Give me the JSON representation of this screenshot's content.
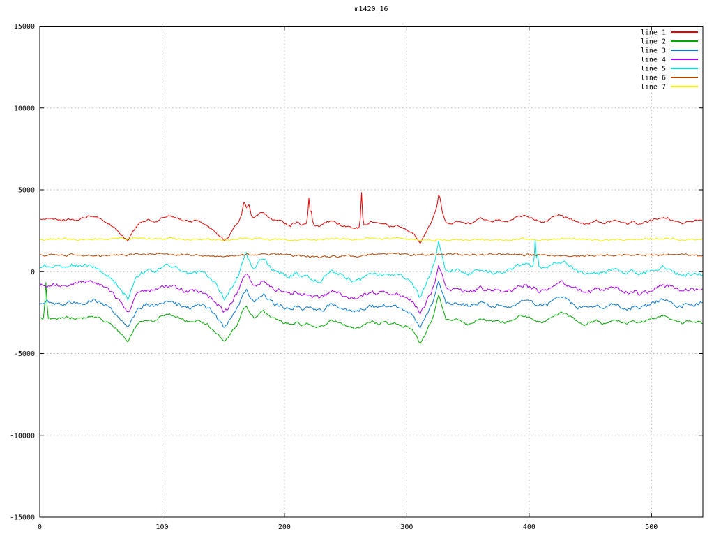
{
  "page": {
    "background": "#ffffff"
  },
  "chart_data": {
    "type": "line",
    "title": "m1420_16",
    "xlabel": "",
    "ylabel": "",
    "xlim": [
      0,
      542
    ],
    "ylim": [
      -15000,
      15000
    ],
    "xticks": [
      0,
      100,
      200,
      300,
      400,
      500
    ],
    "yticks": [
      -15000,
      -10000,
      -5000,
      0,
      5000,
      10000,
      15000
    ],
    "grid": true,
    "grid_style": "dotted",
    "grid_color": "#b0b0b0",
    "axis_color": "#000000",
    "legend_position": "top-right-inside",
    "common_shape_note": "shared macro waveform as [x, deviation] anchors; each series = mean + scale*shape + spikes + jitter",
    "shape": [
      [
        0,
        0
      ],
      [
        8,
        60
      ],
      [
        16,
        -40
      ],
      [
        24,
        40
      ],
      [
        32,
        0
      ],
      [
        40,
        160
      ],
      [
        46,
        120
      ],
      [
        52,
        -60
      ],
      [
        58,
        -350
      ],
      [
        63,
        -700
      ],
      [
        68,
        -1150
      ],
      [
        72,
        -1500
      ],
      [
        75,
        -1000
      ],
      [
        79,
        -450
      ],
      [
        83,
        -200
      ],
      [
        88,
        -60
      ],
      [
        93,
        -140
      ],
      [
        98,
        60
      ],
      [
        104,
        230
      ],
      [
        110,
        170
      ],
      [
        116,
        -30
      ],
      [
        122,
        -140
      ],
      [
        128,
        -60
      ],
      [
        134,
        -260
      ],
      [
        140,
        -560
      ],
      [
        146,
        -1000
      ],
      [
        151,
        -1450
      ],
      [
        154,
        -1250
      ],
      [
        158,
        -700
      ],
      [
        162,
        -250
      ],
      [
        166,
        500
      ],
      [
        169,
        800
      ],
      [
        172,
        350
      ],
      [
        175,
        80
      ],
      [
        179,
        300
      ],
      [
        183,
        500
      ],
      [
        186,
        250
      ],
      [
        190,
        0
      ],
      [
        195,
        -120
      ],
      [
        200,
        -260
      ],
      [
        205,
        -380
      ],
      [
        210,
        -220
      ],
      [
        214,
        -420
      ],
      [
        218,
        -260
      ],
      [
        223,
        -400
      ],
      [
        228,
        -540
      ],
      [
        233,
        -380
      ],
      [
        238,
        -160
      ],
      [
        243,
        -260
      ],
      [
        248,
        -420
      ],
      [
        253,
        -560
      ],
      [
        258,
        -620
      ],
      [
        263,
        -500
      ],
      [
        268,
        -300
      ],
      [
        272,
        -150
      ],
      [
        276,
        -280
      ],
      [
        281,
        -180
      ],
      [
        286,
        -380
      ],
      [
        291,
        -300
      ],
      [
        296,
        -480
      ],
      [
        301,
        -640
      ],
      [
        305,
        -860
      ],
      [
        308,
        -1150
      ],
      [
        311,
        -1550
      ],
      [
        314,
        -1150
      ],
      [
        317,
        -650
      ],
      [
        320,
        -250
      ],
      [
        323,
        400
      ],
      [
        326,
        1400
      ],
      [
        329,
        600
      ],
      [
        332,
        -80
      ],
      [
        336,
        -180
      ],
      [
        340,
        -60
      ],
      [
        345,
        -160
      ],
      [
        350,
        -280
      ],
      [
        355,
        -140
      ],
      [
        360,
        60
      ],
      [
        365,
        -60
      ],
      [
        370,
        -200
      ],
      [
        375,
        -80
      ],
      [
        380,
        -220
      ],
      [
        385,
        -100
      ],
      [
        390,
        100
      ],
      [
        395,
        240
      ],
      [
        400,
        140
      ],
      [
        405,
        -20
      ],
      [
        410,
        -160
      ],
      [
        415,
        -40
      ],
      [
        420,
        180
      ],
      [
        425,
        340
      ],
      [
        430,
        220
      ],
      [
        435,
        20
      ],
      [
        440,
        -180
      ],
      [
        445,
        -340
      ],
      [
        450,
        -220
      ],
      [
        455,
        -100
      ],
      [
        460,
        -240
      ],
      [
        465,
        -120
      ],
      [
        470,
        20
      ],
      [
        475,
        -120
      ],
      [
        480,
        -260
      ],
      [
        485,
        -140
      ],
      [
        490,
        -320
      ],
      [
        495,
        -200
      ],
      [
        500,
        -80
      ],
      [
        505,
        40
      ],
      [
        510,
        140
      ],
      [
        515,
        20
      ],
      [
        520,
        -140
      ],
      [
        525,
        -260
      ],
      [
        530,
        -120
      ],
      [
        535,
        -180
      ],
      [
        540,
        -100
      ],
      [
        542,
        -140
      ]
    ],
    "series": [
      {
        "name": "line 1",
        "color": "#e60000",
        "mean": 3200,
        "scale": 0.9,
        "noise": 55,
        "seed": 1,
        "spikes": [
          [
            167,
            500,
            2
          ],
          [
            171,
            420,
            2
          ],
          [
            220,
            1550,
            1.6
          ],
          [
            222,
            800,
            1.4
          ],
          [
            263,
            2100,
            1.4
          ],
          [
            327,
            400,
            2
          ]
        ]
      },
      {
        "name": "line 2",
        "color": "#00a800",
        "mean": -2900,
        "scale": 1.0,
        "noise": 60,
        "seed": 2,
        "spikes": [
          [
            5,
            2250,
            1.6
          ]
        ]
      },
      {
        "name": "line 3",
        "color": "#0a78d2",
        "mean": -1900,
        "scale": 1.0,
        "noise": 95,
        "seed": 3,
        "spikes": []
      },
      {
        "name": "line 4",
        "color": "#aa00ee",
        "mean": -1050,
        "scale": 1.0,
        "noise": 95,
        "seed": 4,
        "spikes": [
          [
            15,
            300,
            40
          ]
        ]
      },
      {
        "name": "line 5",
        "color": "#00e0e0",
        "mean": 150,
        "scale": 1.2,
        "noise": 95,
        "seed": 5,
        "spikes": [
          [
            15,
            350,
            40
          ],
          [
            168,
            420,
            2
          ],
          [
            405,
            1650,
            1.4
          ],
          [
            407,
            900,
            1.2
          ]
        ]
      },
      {
        "name": "line 6",
        "color": "#b44400",
        "mean": 1000,
        "scale": 0.04,
        "noise": 50,
        "seed": 6,
        "spikes": []
      },
      {
        "name": "line 7",
        "color": "#f0f000",
        "mean": 2000,
        "scale": 0.03,
        "noise": 45,
        "seed": 7,
        "spikes": []
      }
    ]
  }
}
